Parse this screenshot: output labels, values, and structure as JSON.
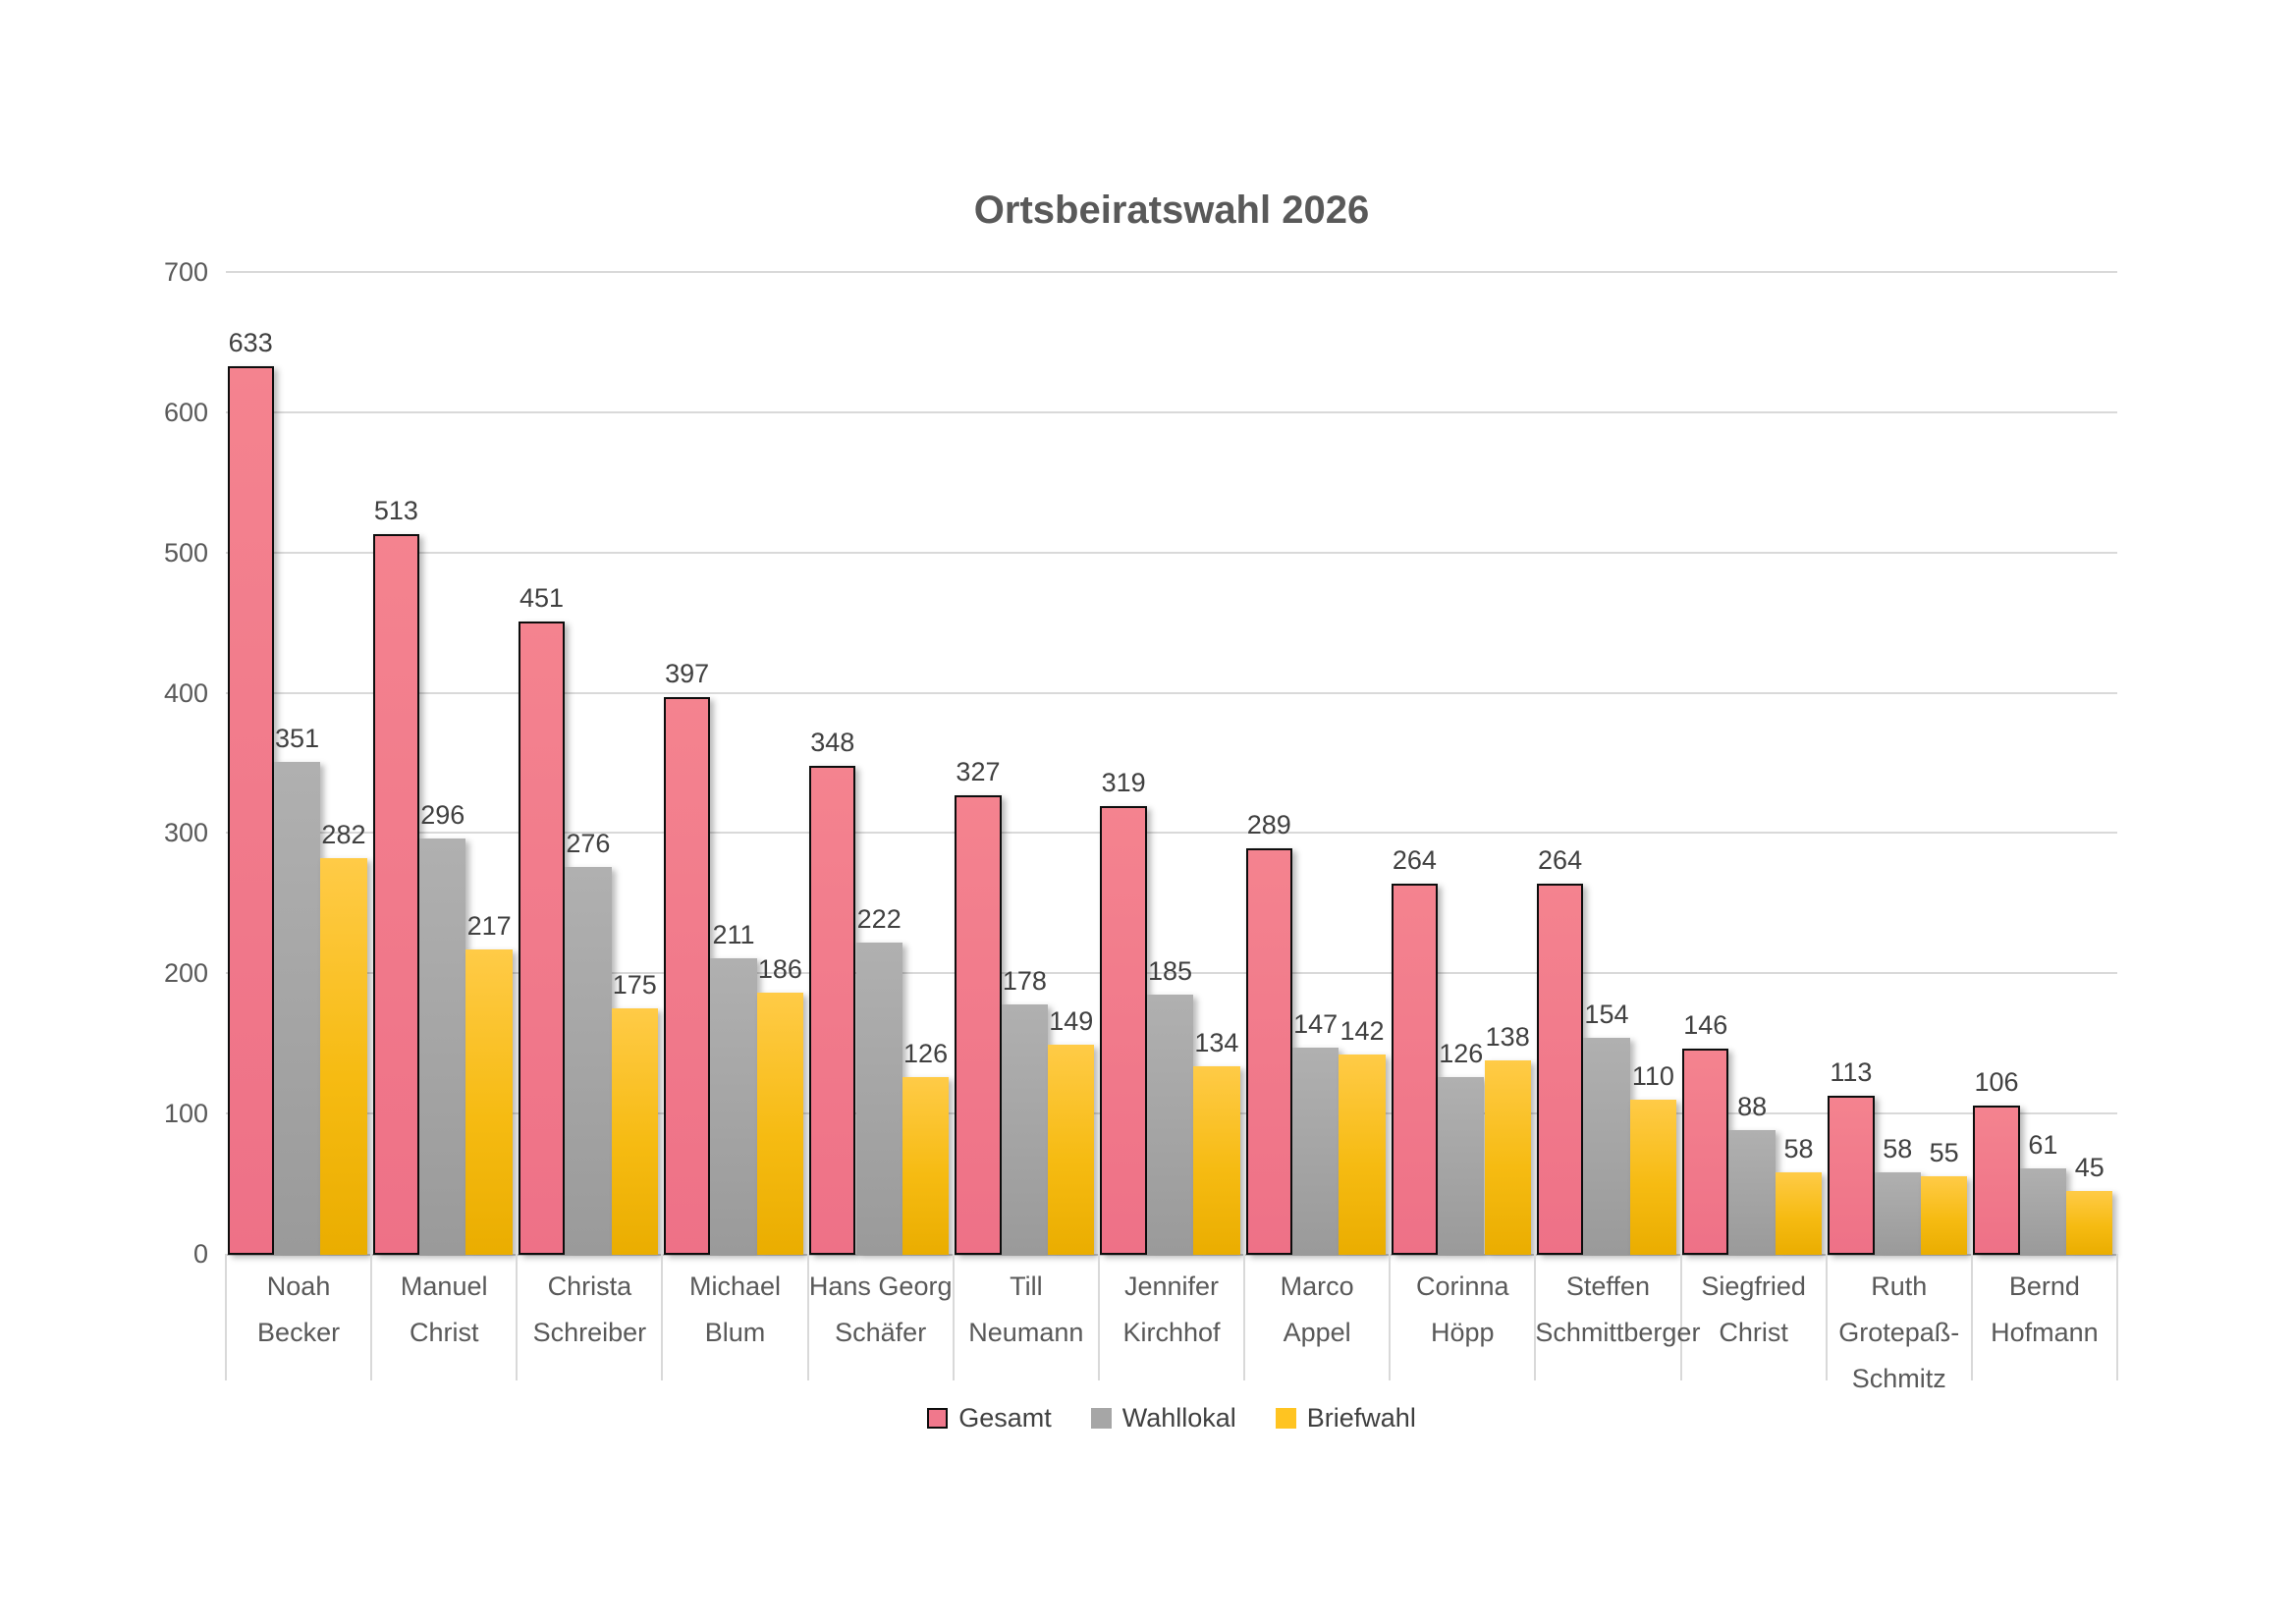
{
  "title": "Ortsbeiratswahl 2026",
  "colors": {
    "background": "#FFFFFF",
    "title_text": "#595959",
    "axis_text": "#595959",
    "value_label_text": "#404040",
    "gridline": "#D9D9D9",
    "axis_line": "#C6C6C6",
    "category_divider": "#D9D9D9",
    "series_gesamt": "#F0788C",
    "series_gesamt_border": "#0D0D0D",
    "series_wahllokal": "#A6A6A6",
    "series_briefwahl": "#FFC421"
  },
  "chart_data": {
    "type": "bar",
    "title": "Ortsbeiratswahl 2026",
    "xlabel": "",
    "ylabel": "",
    "ylim": [
      0,
      700
    ],
    "ytick_step": 100,
    "yticks": [
      0,
      100,
      200,
      300,
      400,
      500,
      600,
      700
    ],
    "grid": true,
    "value_labels": true,
    "legend_position": "bottom",
    "categories": [
      {
        "label": "Noah Becker",
        "lines": [
          "Noah",
          "Becker"
        ]
      },
      {
        "label": "Manuel Christ",
        "lines": [
          "Manuel",
          "Christ"
        ]
      },
      {
        "label": "Christa Schreiber",
        "lines": [
          "Christa",
          "Schreiber"
        ]
      },
      {
        "label": "Michael Blum",
        "lines": [
          "Michael",
          "Blum"
        ]
      },
      {
        "label": "Hans Georg Schäfer",
        "lines": [
          "Hans Georg",
          "Schäfer"
        ]
      },
      {
        "label": "Till Neumann",
        "lines": [
          "Till",
          "Neumann"
        ]
      },
      {
        "label": "Jennifer Kirchhof",
        "lines": [
          "Jennifer",
          "Kirchhof"
        ]
      },
      {
        "label": "Marco Appel",
        "lines": [
          "Marco",
          "Appel"
        ]
      },
      {
        "label": "Corinna Höpp",
        "lines": [
          "Corinna",
          "Höpp"
        ]
      },
      {
        "label": "Steffen Schmittberger",
        "lines": [
          "Steffen",
          "Schmittberger"
        ]
      },
      {
        "label": "Siegfried Christ",
        "lines": [
          "Siegfried",
          "Christ"
        ]
      },
      {
        "label": "Ruth Grotepaß-Schmitz",
        "lines": [
          "Ruth",
          "Grotepaß-",
          "Schmitz"
        ]
      },
      {
        "label": "Bernd Hofmann",
        "lines": [
          "Bernd",
          "Hofmann"
        ]
      }
    ],
    "series": [
      {
        "name": "Gesamt",
        "color": "#F0788C",
        "values": [
          633,
          513,
          451,
          397,
          348,
          327,
          319,
          289,
          264,
          264,
          146,
          113,
          106
        ]
      },
      {
        "name": "Wahllokal",
        "color": "#A6A6A6",
        "values": [
          351,
          296,
          276,
          211,
          222,
          178,
          185,
          147,
          126,
          154,
          88,
          58,
          61
        ]
      },
      {
        "name": "Briefwahl",
        "color": "#FFC421",
        "values": [
          282,
          217,
          175,
          186,
          126,
          149,
          134,
          142,
          138,
          110,
          58,
          55,
          45
        ]
      }
    ]
  }
}
